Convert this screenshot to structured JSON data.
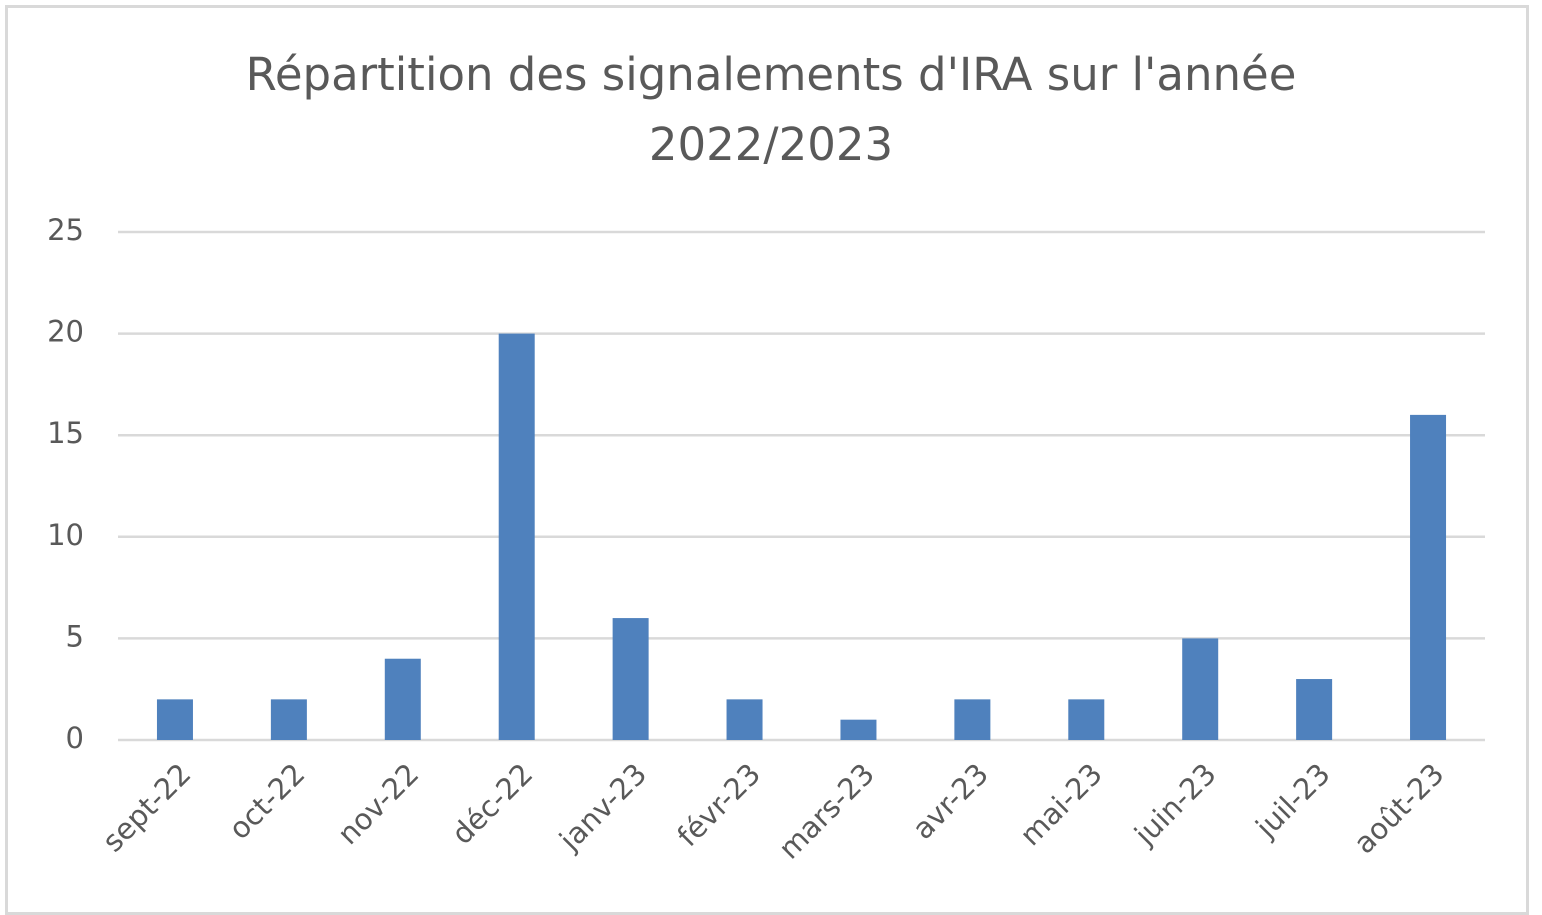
{
  "chart_data": {
    "type": "bar",
    "title": "Répartition des signalements d'IRA sur l'année 2022/2023",
    "categories": [
      "sept-22",
      "oct-22",
      "nov-22",
      "déc-22",
      "janv-23",
      "févr-23",
      "mars-23",
      "avr-23",
      "mai-23",
      "juin-23",
      "juil-23",
      "août-23"
    ],
    "values": [
      2,
      2,
      4,
      20,
      6,
      2,
      1,
      2,
      2,
      5,
      3,
      16
    ],
    "color": "#4f81bd",
    "ylim": [
      0,
      25
    ],
    "yticks": [
      0,
      5,
      10,
      15,
      20,
      25
    ],
    "grid": true
  }
}
